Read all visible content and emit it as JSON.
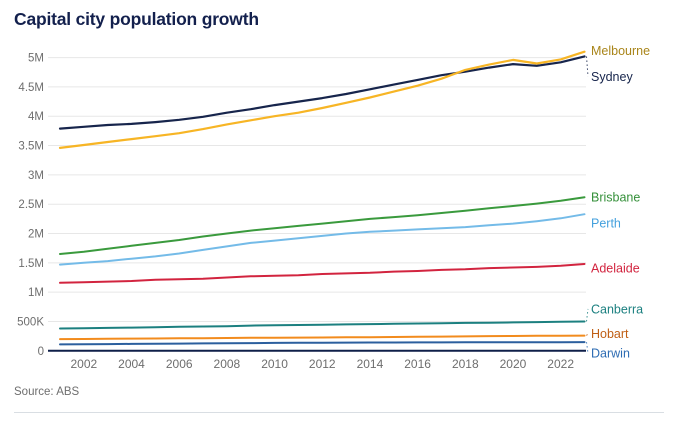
{
  "title": "Capital city population growth",
  "source": "Source: ABS",
  "colors": {
    "title": "#13204d",
    "axis_text": "#6e6e6e",
    "gridline": "#e7e7e7",
    "zero_axis": "#0f1f49",
    "divider": "#d9dee3"
  },
  "chart_data": {
    "type": "line",
    "title": "Capital city population growth",
    "source": "Source: ABS",
    "units": "persons (millions)",
    "grid": true,
    "legend_position": "right-edge-labels",
    "x": [
      2001,
      2002,
      2003,
      2004,
      2005,
      2006,
      2007,
      2008,
      2009,
      2010,
      2011,
      2012,
      2013,
      2014,
      2015,
      2016,
      2017,
      2018,
      2019,
      2020,
      2021,
      2022,
      2023
    ],
    "x_tick_labels": [
      "2002",
      "2004",
      "2006",
      "2008",
      "2010",
      "2012",
      "2014",
      "2016",
      "2018",
      "2020",
      "2022"
    ],
    "x_ticks": [
      2002,
      2004,
      2006,
      2008,
      2010,
      2012,
      2014,
      2016,
      2018,
      2020,
      2022
    ],
    "xlim": [
      2001,
      2023
    ],
    "ylim": [
      0,
      5.2
    ],
    "y_ticks": [
      {
        "label": "5M",
        "value": 5
      },
      {
        "label": "4.5M",
        "value": 4.5
      },
      {
        "label": "4M",
        "value": 4
      },
      {
        "label": "3.5M",
        "value": 3.5
      },
      {
        "label": "3M",
        "value": 3
      },
      {
        "label": "2.5M",
        "value": 2.5
      },
      {
        "label": "2M",
        "value": 2
      },
      {
        "label": "1.5M",
        "value": 1.5
      },
      {
        "label": "1M",
        "value": 1
      },
      {
        "label": "500K",
        "value": 0.5
      },
      {
        "label": "0",
        "value": 0
      }
    ],
    "series": [
      {
        "name": "Brisbane",
        "color": "#3a9a3d",
        "label_color": "#35903a",
        "values": [
          1.65,
          1.69,
          1.74,
          1.79,
          1.84,
          1.89,
          1.95,
          2.0,
          2.05,
          2.09,
          2.13,
          2.17,
          2.21,
          2.25,
          2.28,
          2.31,
          2.35,
          2.39,
          2.43,
          2.47,
          2.51,
          2.56,
          2.62
        ]
      },
      {
        "name": "Perth",
        "color": "#74bbe8",
        "label_color": "#44a0dd",
        "values": [
          1.47,
          1.5,
          1.53,
          1.57,
          1.61,
          1.66,
          1.72,
          1.78,
          1.84,
          1.88,
          1.92,
          1.96,
          2.0,
          2.03,
          2.05,
          2.07,
          2.09,
          2.11,
          2.14,
          2.17,
          2.21,
          2.26,
          2.33
        ]
      },
      {
        "name": "Adelaide",
        "color": "#d2243f",
        "label_color": "#d2243f",
        "values": [
          1.16,
          1.17,
          1.18,
          1.19,
          1.21,
          1.22,
          1.23,
          1.25,
          1.27,
          1.28,
          1.29,
          1.31,
          1.32,
          1.33,
          1.35,
          1.36,
          1.38,
          1.39,
          1.41,
          1.42,
          1.43,
          1.45,
          1.48
        ]
      },
      {
        "name": "Canberra",
        "color": "#1c8080",
        "label_color": "#1c8080",
        "values": [
          0.38,
          0.385,
          0.39,
          0.395,
          0.4,
          0.41,
          0.415,
          0.42,
          0.43,
          0.435,
          0.44,
          0.445,
          0.45,
          0.455,
          0.46,
          0.465,
          0.47,
          0.475,
          0.48,
          0.485,
          0.49,
          0.495,
          0.5
        ]
      },
      {
        "name": "Hobart",
        "color": "#f28b1d",
        "label_color": "#c05f15",
        "values": [
          0.2,
          0.202,
          0.205,
          0.208,
          0.21,
          0.213,
          0.215,
          0.218,
          0.221,
          0.223,
          0.225,
          0.227,
          0.23,
          0.232,
          0.235,
          0.238,
          0.242,
          0.246,
          0.25,
          0.253,
          0.255,
          0.257,
          0.26
        ]
      },
      {
        "name": "Darwin",
        "color": "#2c5f9e",
        "label_color": "#2d6cb3",
        "values": [
          0.109,
          0.111,
          0.114,
          0.117,
          0.12,
          0.123,
          0.126,
          0.129,
          0.132,
          0.134,
          0.136,
          0.138,
          0.14,
          0.141,
          0.142,
          0.143,
          0.144,
          0.145,
          0.146,
          0.146,
          0.147,
          0.147,
          0.148
        ]
      },
      {
        "name": "Sydney",
        "color": "#17254c",
        "label_color": "#17254c",
        "values": [
          3.79,
          3.82,
          3.85,
          3.87,
          3.9,
          3.94,
          3.99,
          4.06,
          4.12,
          4.19,
          4.25,
          4.31,
          4.38,
          4.46,
          4.54,
          4.62,
          4.7,
          4.76,
          4.83,
          4.89,
          4.86,
          4.92,
          5.02
        ]
      },
      {
        "name": "Melbourne",
        "color": "#f7b525",
        "label_color": "#a9851a",
        "values": [
          3.46,
          3.51,
          3.56,
          3.61,
          3.66,
          3.71,
          3.78,
          3.86,
          3.93,
          4.0,
          4.06,
          4.14,
          4.23,
          4.32,
          4.42,
          4.52,
          4.64,
          4.79,
          4.88,
          4.96,
          4.9,
          4.97,
          5.1
        ]
      }
    ]
  }
}
